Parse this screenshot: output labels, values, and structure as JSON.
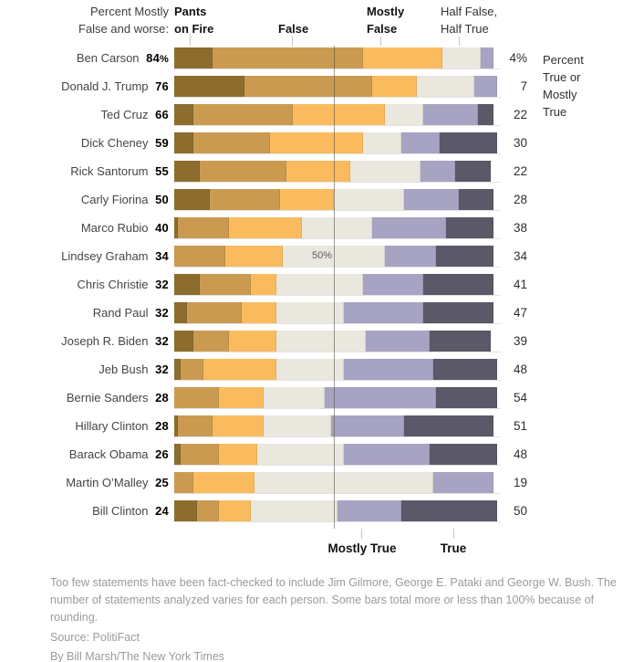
{
  "header": {
    "left_label": "Percent Mostly\nFalse and worse:",
    "categories": [
      {
        "label": "Pants\non Fire"
      },
      {
        "label": "False"
      },
      {
        "label": "Mostly\nFalse"
      },
      {
        "label": "Half False,\nHalf True"
      }
    ],
    "right_label": "Percent\nTrue or\nMostly\nTrue"
  },
  "gridline_label": "50%",
  "bottom_labels": {
    "mostly_true": "Mostly True",
    "true": "True"
  },
  "colors": {
    "segment_colors": [
      "#8C6D2E",
      "#CB9A51",
      "#FABB5E",
      "#E9E7DE",
      "#A7A3C2",
      "#5B5868"
    ],
    "gridline": "rgba(82,76,60,0.55)",
    "leader_line": "#c7c7c7",
    "footer_text": "#9b9b9b"
  },
  "rows": [
    {
      "name": "Ben Carson",
      "left": "84",
      "left_pct_sign": "%",
      "right": "4",
      "right_pct_sign": "%",
      "segments": [
        12,
        47,
        25,
        12,
        4,
        0
      ]
    },
    {
      "name": "Donald J. Trump",
      "left": "76",
      "left_pct_sign": "",
      "right": "7",
      "right_pct_sign": "",
      "segments": [
        22,
        40,
        14,
        18,
        7,
        0
      ]
    },
    {
      "name": "Ted Cruz",
      "left": "66",
      "left_pct_sign": "",
      "right": "22",
      "right_pct_sign": "",
      "segments": [
        6,
        31,
        29,
        12,
        17,
        5
      ]
    },
    {
      "name": "Dick Cheney",
      "left": "59",
      "left_pct_sign": "",
      "right": "30",
      "right_pct_sign": "",
      "segments": [
        6,
        24,
        29,
        12,
        12,
        18
      ]
    },
    {
      "name": "Rick Santorum",
      "left": "55",
      "left_pct_sign": "",
      "right": "22",
      "right_pct_sign": "",
      "segments": [
        8,
        27,
        20,
        22,
        11,
        11
      ]
    },
    {
      "name": "Carly Fiorina",
      "left": "50",
      "left_pct_sign": "",
      "right": "28",
      "right_pct_sign": "",
      "segments": [
        11,
        22,
        17,
        22,
        17,
        11
      ]
    },
    {
      "name": "Marco Rubio",
      "left": "40",
      "left_pct_sign": "",
      "right": "38",
      "right_pct_sign": "",
      "segments": [
        1,
        16,
        23,
        22,
        23,
        15
      ]
    },
    {
      "name": "Lindsey Graham",
      "left": "34",
      "left_pct_sign": "",
      "right": "34",
      "right_pct_sign": "",
      "segments": [
        0,
        16,
        18,
        32,
        16,
        18
      ]
    },
    {
      "name": "Chris Christie",
      "left": "32",
      "left_pct_sign": "",
      "right": "41",
      "right_pct_sign": "",
      "segments": [
        8,
        16,
        8,
        27,
        19,
        22
      ]
    },
    {
      "name": "Rand Paul",
      "left": "32",
      "left_pct_sign": "",
      "right": "47",
      "right_pct_sign": "",
      "segments": [
        4,
        17,
        11,
        21,
        25,
        22
      ]
    },
    {
      "name": "Joseph R. Biden",
      "left": "32",
      "left_pct_sign": "",
      "right": "39",
      "right_pct_sign": "",
      "segments": [
        6,
        11,
        15,
        28,
        20,
        19
      ]
    },
    {
      "name": "Jeb Bush",
      "left": "32",
      "left_pct_sign": "",
      "right": "48",
      "right_pct_sign": "",
      "segments": [
        2,
        7,
        23,
        21,
        28,
        20
      ]
    },
    {
      "name": "Bernie Sanders",
      "left": "28",
      "left_pct_sign": "",
      "right": "54",
      "right_pct_sign": "",
      "segments": [
        0,
        14,
        14,
        19,
        35,
        19
      ]
    },
    {
      "name": "Hillary Clinton",
      "left": "28",
      "left_pct_sign": "",
      "right": "51",
      "right_pct_sign": "",
      "segments": [
        1,
        11,
        16,
        21,
        23,
        28
      ]
    },
    {
      "name": "Barack Obama",
      "left": "26",
      "left_pct_sign": "",
      "right": "48",
      "right_pct_sign": "",
      "segments": [
        2,
        12,
        12,
        27,
        27,
        21
      ]
    },
    {
      "name": "Martin O’Malley",
      "left": "25",
      "left_pct_sign": "",
      "right": "19",
      "right_pct_sign": "",
      "segments": [
        0,
        6,
        19,
        56,
        19,
        0
      ]
    },
    {
      "name": "Bill Clinton",
      "left": "24",
      "left_pct_sign": "",
      "right": "50",
      "right_pct_sign": "",
      "segments": [
        7,
        7,
        10,
        27,
        20,
        30
      ]
    }
  ],
  "footer": {
    "note": "Too few statements have been fact-checked to include Jim Gilmore, George E. Pataki and George W. Bush. The number of statements analyzed varies for each person. Some bars total more or less than 100% because of rounding.",
    "source": "Source: PolitiFact",
    "byline": "By Bill Marsh/The New York Times"
  },
  "chart_data": {
    "type": "bar",
    "stacked": true,
    "orientation": "horizontal",
    "unit": "percent of fact-checked statements",
    "xlim": [
      0,
      100
    ],
    "gridline": {
      "value": 50,
      "label": "50%"
    },
    "legend_position": "top (category labels with leader lines)",
    "categories": [
      "Ben Carson",
      "Donald J. Trump",
      "Ted Cruz",
      "Dick Cheney",
      "Rick Santorum",
      "Carly Fiorina",
      "Marco Rubio",
      "Lindsey Graham",
      "Chris Christie",
      "Rand Paul",
      "Joseph R. Biden",
      "Jeb Bush",
      "Bernie Sanders",
      "Hillary Clinton",
      "Barack Obama",
      "Martin O’Malley",
      "Bill Clinton"
    ],
    "series": [
      {
        "name": "Pants on Fire",
        "color": "#8C6D2E",
        "values": [
          12,
          22,
          6,
          6,
          8,
          11,
          1,
          0,
          8,
          4,
          6,
          2,
          0,
          1,
          2,
          0,
          7
        ]
      },
      {
        "name": "False",
        "color": "#CB9A51",
        "values": [
          47,
          40,
          31,
          24,
          27,
          22,
          16,
          16,
          16,
          17,
          11,
          7,
          14,
          11,
          12,
          6,
          7
        ]
      },
      {
        "name": "Mostly False",
        "color": "#FABB5E",
        "values": [
          25,
          14,
          29,
          29,
          20,
          17,
          23,
          18,
          8,
          11,
          15,
          23,
          14,
          16,
          12,
          19,
          10
        ]
      },
      {
        "name": "Half False, Half True",
        "color": "#E9E7DE",
        "values": [
          12,
          18,
          12,
          12,
          22,
          22,
          22,
          32,
          27,
          21,
          28,
          21,
          19,
          21,
          27,
          56,
          27
        ]
      },
      {
        "name": "Mostly True",
        "color": "#A7A3C2",
        "values": [
          4,
          7,
          17,
          12,
          11,
          17,
          23,
          16,
          19,
          25,
          20,
          28,
          35,
          23,
          27,
          19,
          20
        ]
      },
      {
        "name": "True",
        "color": "#5B5868",
        "values": [
          0,
          0,
          5,
          18,
          11,
          11,
          15,
          18,
          22,
          22,
          19,
          20,
          19,
          28,
          21,
          0,
          30
        ]
      }
    ],
    "left_annotation": {
      "label": "Percent Mostly False and worse:",
      "values": [
        84,
        76,
        66,
        59,
        55,
        50,
        40,
        34,
        32,
        32,
        32,
        32,
        28,
        28,
        26,
        25,
        24
      ]
    },
    "right_annotation": {
      "label": "Percent True or Mostly True",
      "values": [
        4,
        7,
        22,
        30,
        22,
        28,
        38,
        34,
        41,
        47,
        39,
        48,
        54,
        51,
        48,
        19,
        50
      ]
    }
  }
}
